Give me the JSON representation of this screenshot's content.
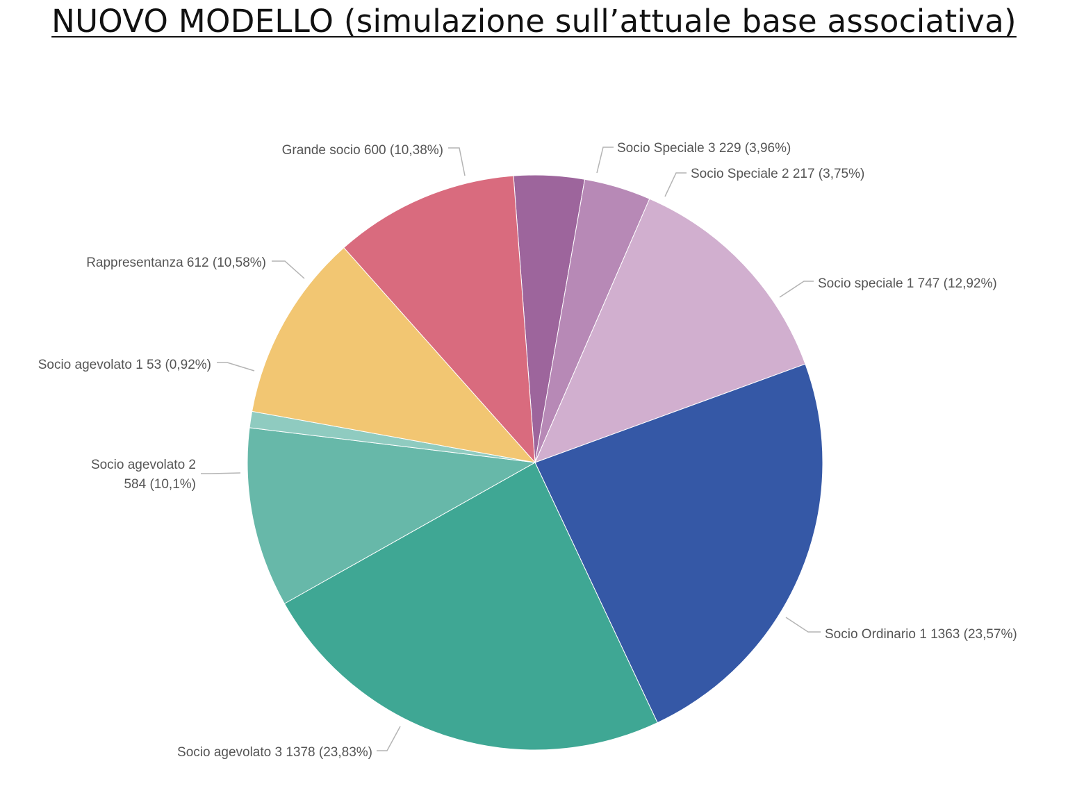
{
  "chart_data": {
    "type": "pie",
    "title": "NUOVO MODELLO (simulazione sull’attuale base associativa)",
    "slices": [
      {
        "label": "Socio Speciale 3",
        "value": 229,
        "percent_label": "3,96%",
        "color": "#9d659c"
      },
      {
        "label": "Socio Speciale 2",
        "value": 217,
        "percent_label": "3,75%",
        "color": "#b789b6"
      },
      {
        "label": "Socio speciale 1",
        "value": 747,
        "percent_label": "12,92%",
        "color": "#d1afcf"
      },
      {
        "label": "Socio Ordinario 1",
        "value": 1363,
        "percent_label": "23,57%",
        "color": "#3558a6"
      },
      {
        "label": "Socio agevolato 3",
        "value": 1378,
        "percent_label": "23,83%",
        "color": "#3fa794"
      },
      {
        "label": "Socio agevolato 2",
        "value": 584,
        "percent_label": "10,1%",
        "color": "#67b8a9"
      },
      {
        "label": "Socio agevolato 1",
        "value": 53,
        "percent_label": "0,92%",
        "color": "#8fcbc0"
      },
      {
        "label": "Rappresentanza",
        "value": 612,
        "percent_label": "10,58%",
        "color": "#f2c672"
      },
      {
        "label": "Grande socio",
        "value": 600,
        "percent_label": "10,38%",
        "color": "#d96b7e"
      }
    ]
  }
}
